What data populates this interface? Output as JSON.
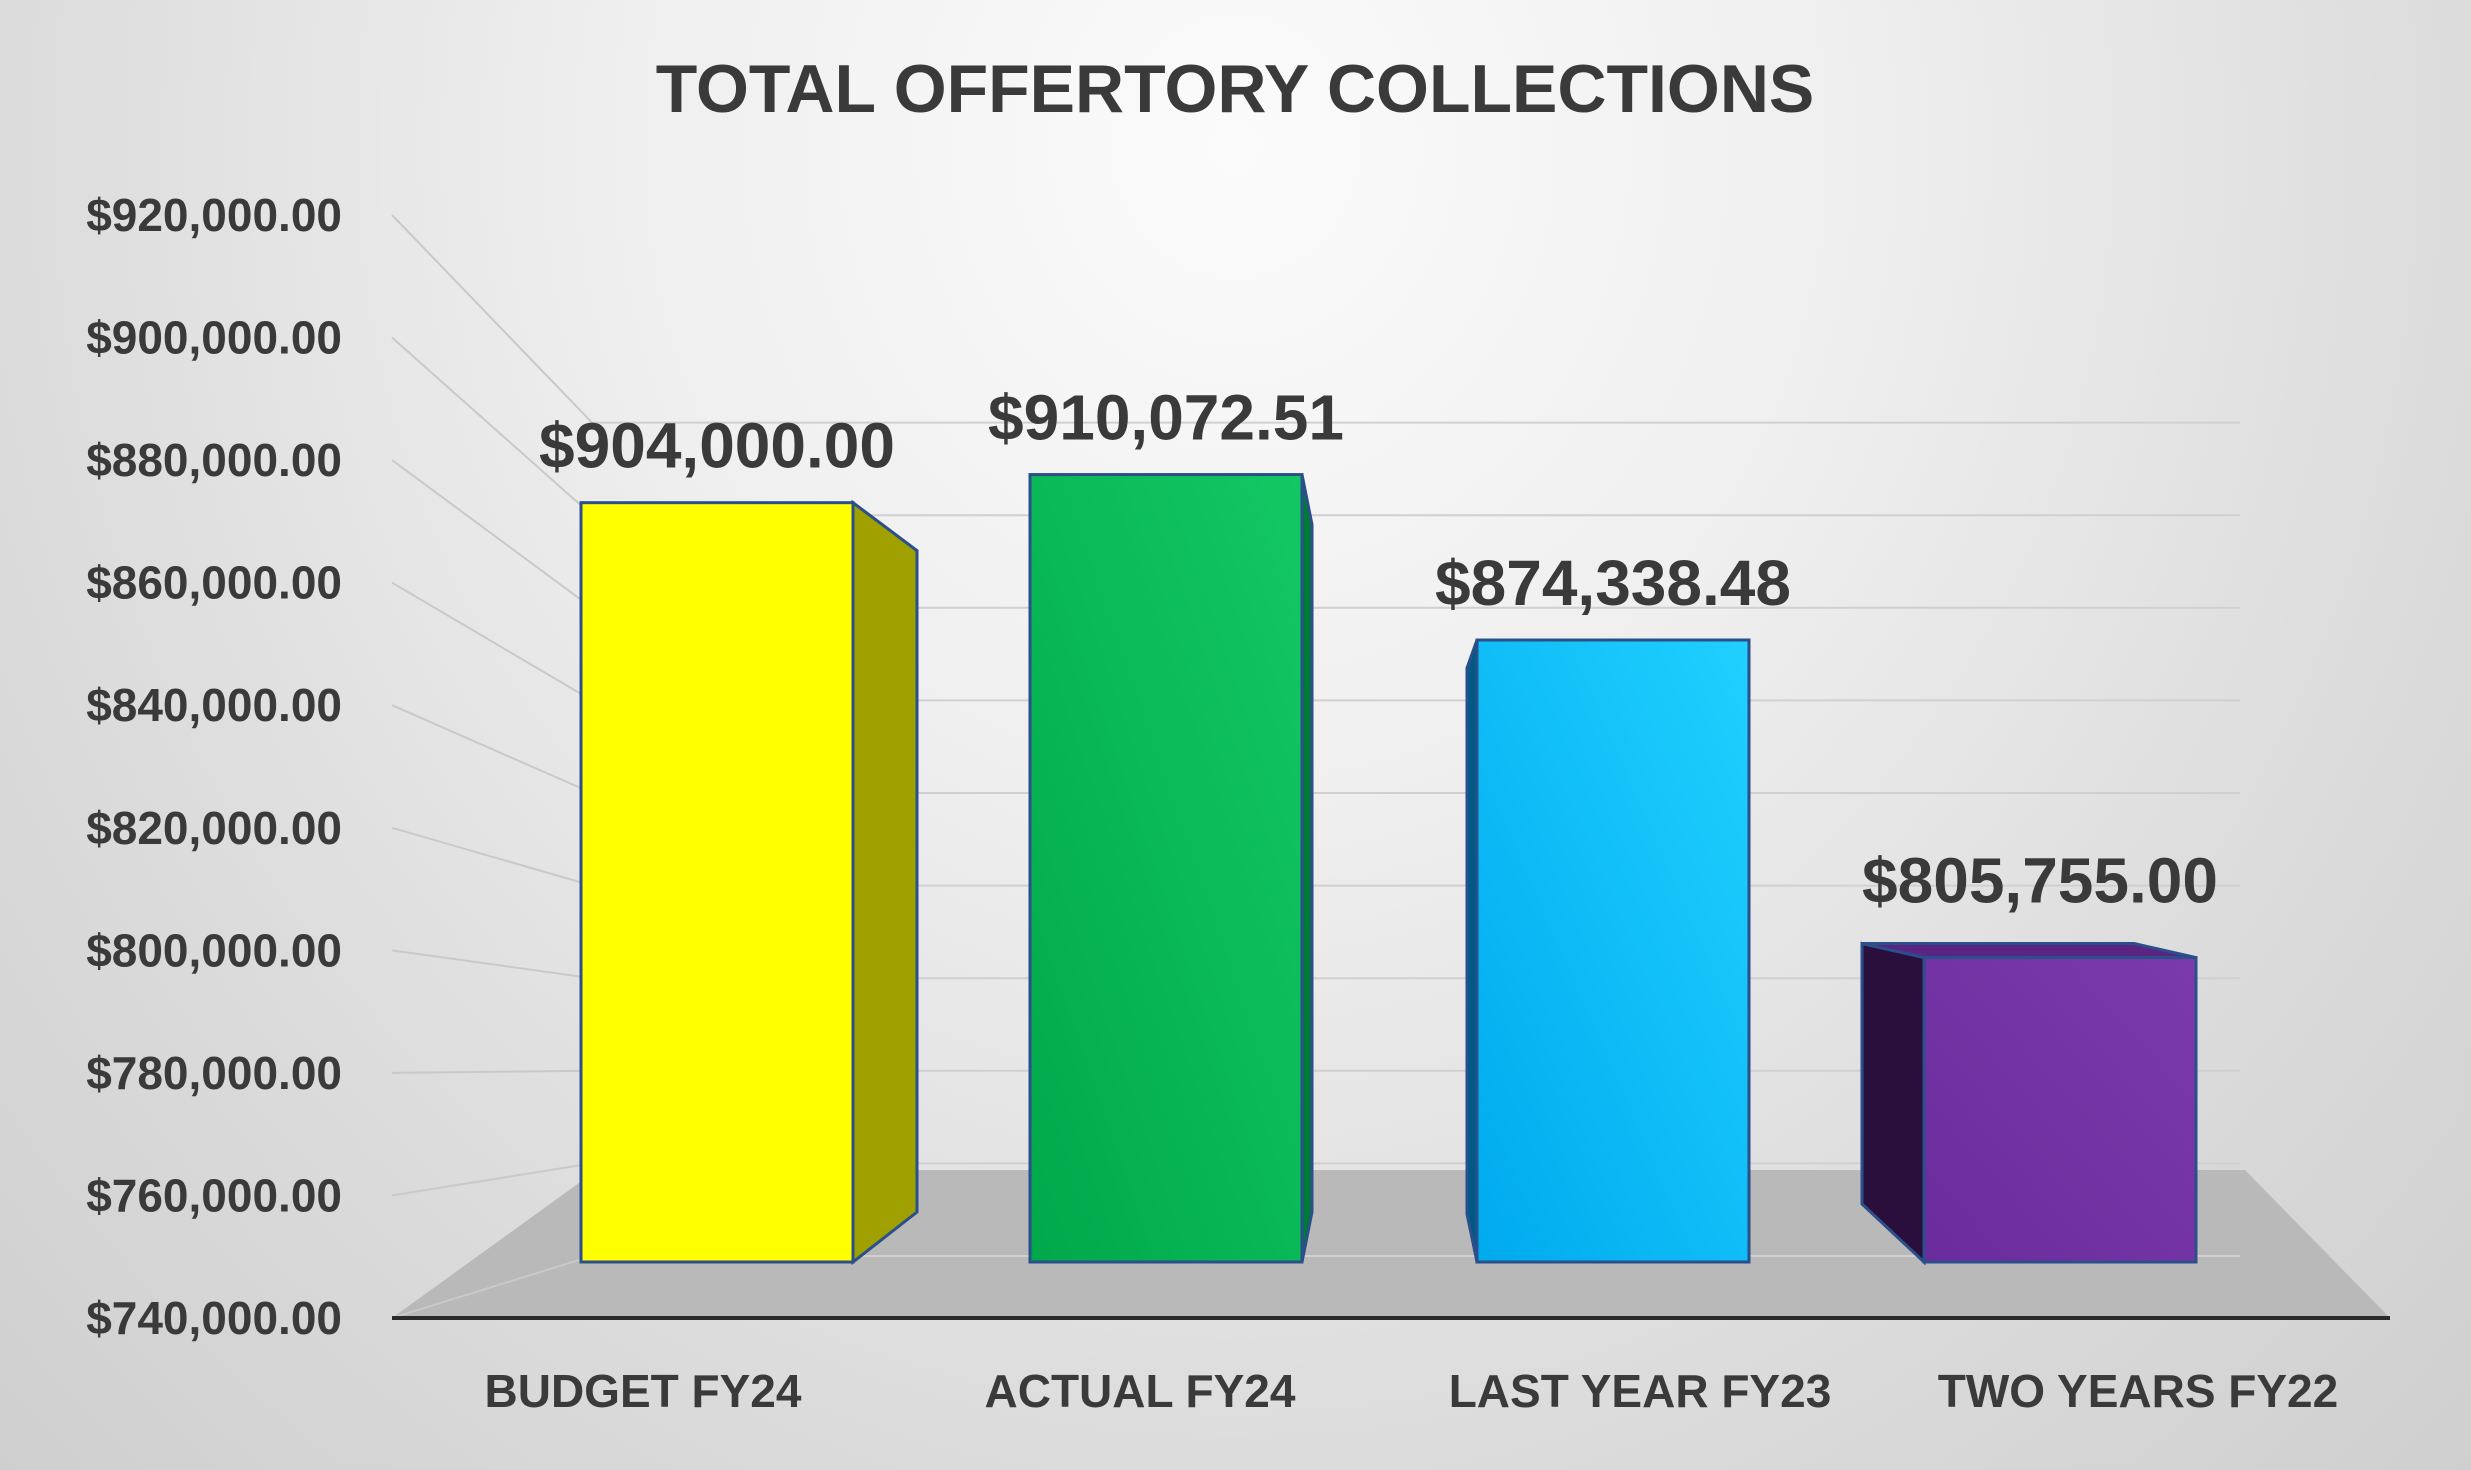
{
  "chart_data": {
    "type": "bar",
    "title": "TOTAL OFFERTORY COLLECTIONS",
    "xlabel": "",
    "ylabel": "",
    "categories": [
      "BUDGET FY24",
      "ACTUAL FY24",
      "LAST YEAR FY23",
      "TWO YEARS FY22"
    ],
    "values": [
      904000.0,
      910072.51,
      874338.48,
      805755.0
    ],
    "data_labels": [
      "$904,000.00",
      "$910,072.51",
      "$874,338.48",
      "$805,755.00"
    ],
    "ylim": [
      740000,
      920000
    ],
    "yticks": [
      740000,
      760000,
      780000,
      800000,
      820000,
      840000,
      860000,
      880000,
      900000,
      920000
    ],
    "ytick_labels": [
      "$740,000.00",
      "$760,000.00",
      "$780,000.00",
      "$800,000.00",
      "$820,000.00",
      "$840,000.00",
      "$860,000.00",
      "$880,000.00",
      "$900,000.00",
      "$920,000.00"
    ],
    "colors": [
      "#ffff00",
      "#00b050",
      "#00b0f0",
      "#7030a0"
    ],
    "grid": true,
    "legend": "none",
    "style": "3d"
  }
}
